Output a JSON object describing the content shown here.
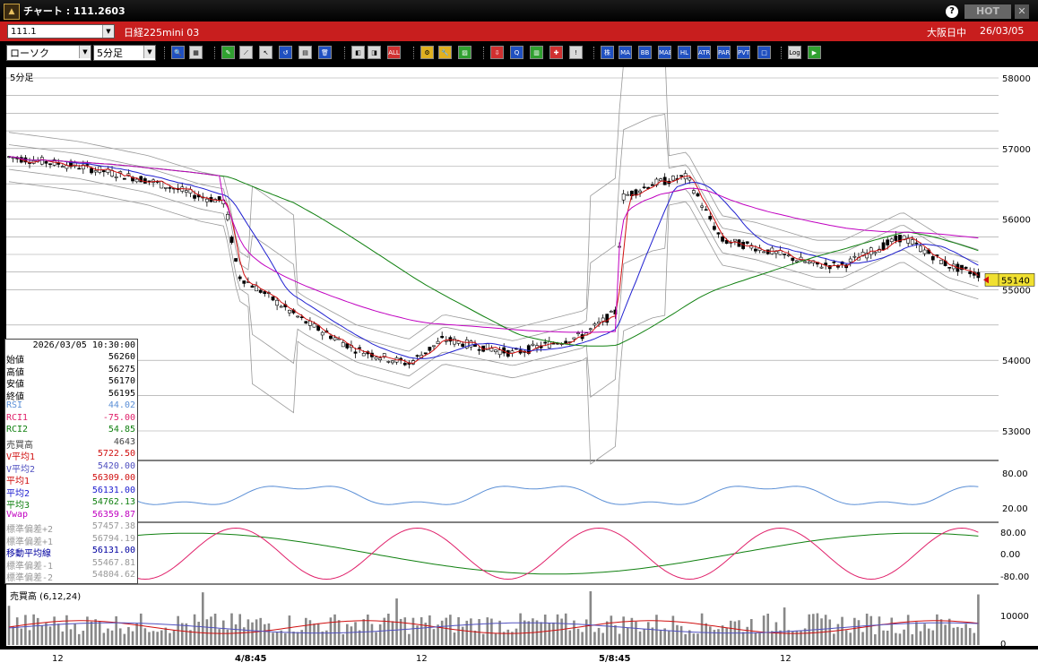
{
  "window": {
    "title": "チャート : 111.2603",
    "hot_label": "HOT",
    "help_label": "?",
    "close_label": "✕",
    "app_icon": "app-logo-icon"
  },
  "symbol_bar": {
    "code": "111.1",
    "name": "日経225mini 03",
    "market": "大阪日中",
    "date": "26/03/05"
  },
  "toolbar": {
    "chart_type": "ローソク",
    "period": "5分足",
    "buttons": [
      {
        "label": "🔍",
        "name": "zoom-icon"
      },
      {
        "label": "▦",
        "name": "grid-icon"
      },
      {
        "label": "✎",
        "name": "pen-icon"
      },
      {
        "label": "⟋",
        "name": "trendline-icon"
      },
      {
        "label": "↖",
        "name": "cursor-icon"
      },
      {
        "label": "↺",
        "name": "redo-icon"
      },
      {
        "label": "▤",
        "name": "memo-icon"
      },
      {
        "label": "🗑",
        "name": "trash-icon"
      },
      {
        "label": "◧",
        "name": "zoom-in-icon"
      },
      {
        "label": "◨",
        "name": "zoom-out-icon"
      },
      {
        "label": "ALL",
        "name": "all-icon"
      },
      {
        "label": "⚙",
        "name": "gear-icon"
      },
      {
        "label": "🔧",
        "name": "wrench-icon"
      },
      {
        "label": "▨",
        "name": "palette-icon"
      },
      {
        "label": "⇩",
        "name": "download-icon"
      },
      {
        "label": "Q",
        "name": "query-icon"
      },
      {
        "label": "▥",
        "name": "table-icon"
      },
      {
        "label": "✚",
        "name": "crosshair-icon"
      },
      {
        "label": "!",
        "name": "alert-icon"
      },
      {
        "label": "株",
        "name": "stock-icon"
      },
      {
        "label": "MA",
        "name": "ma-icon"
      },
      {
        "label": "BB",
        "name": "bb-icon"
      },
      {
        "label": "MAE",
        "name": "mae-icon"
      },
      {
        "label": "HL",
        "name": "hl-icon"
      },
      {
        "label": "ATR",
        "name": "atr-icon"
      },
      {
        "label": "PAR",
        "name": "par-icon"
      },
      {
        "label": "PVT",
        "name": "pvt-icon"
      },
      {
        "label": "□",
        "name": "box-icon"
      },
      {
        "label": "Log",
        "name": "log-icon"
      },
      {
        "label": "▶",
        "name": "play-icon"
      }
    ]
  },
  "main_chart": {
    "period_label": "5分足",
    "price_ticks": [
      "58000",
      "57000",
      "56000",
      "55000",
      "54000",
      "53000"
    ],
    "current_price": "55140"
  },
  "rsi_panel": {
    "ticks": [
      "80.00",
      "20.00"
    ]
  },
  "rci_panel": {
    "ticks": [
      "80.00",
      "0.00",
      "-80.00"
    ]
  },
  "volume_panel": {
    "label": "売買高 (6,12,24)",
    "ticks": [
      "10000",
      "0"
    ]
  },
  "x_axis": [
    "12",
    "4/8:45",
    "12",
    "5/8:45",
    "12"
  ],
  "info": {
    "datetime": "2026/03/05  10:30:00",
    "rows": [
      {
        "k": "始値",
        "v": "56260",
        "c": "#000"
      },
      {
        "k": "高値",
        "v": "56275",
        "c": "#000"
      },
      {
        "k": "安値",
        "v": "56170",
        "c": "#000"
      },
      {
        "k": "終値",
        "v": "56195",
        "c": "#000"
      },
      {
        "k": "RSI",
        "v": "44.02",
        "c": "#5b8fd6"
      },
      {
        "k": "RCI1",
        "v": "-75.00",
        "c": "#e0206a"
      },
      {
        "k": "RCI2",
        "v": "54.85",
        "c": "#108010"
      },
      {
        "k": "売買高",
        "v": "4643",
        "c": "#444"
      },
      {
        "k": "V平均1",
        "v": "5722.50",
        "c": "#d01010"
      },
      {
        "k": "V平均2",
        "v": "5420.00",
        "c": "#5050c0"
      },
      {
        "k": "平均1",
        "v": "56309.00",
        "c": "#d01010"
      },
      {
        "k": "平均2",
        "v": "56131.00",
        "c": "#2020d0"
      },
      {
        "k": "平均3",
        "v": "54762.13",
        "c": "#108010"
      },
      {
        "k": "Vwap",
        "v": "56359.87",
        "c": "#c000c0"
      },
      {
        "k": "標準偏差+2",
        "v": "57457.38",
        "c": "#999"
      },
      {
        "k": "標準偏差+1",
        "v": "56794.19",
        "c": "#999"
      },
      {
        "k": "移動平均線",
        "v": "56131.00",
        "c": "#0000a0"
      },
      {
        "k": "標準偏差-1",
        "v": "55467.81",
        "c": "#999"
      },
      {
        "k": "標準偏差-2",
        "v": "54804.62",
        "c": "#999"
      }
    ]
  },
  "colors": {
    "title_bg": "#000000",
    "symbol_bar_bg": "#c81e1e",
    "chart_bg": "#ffffff",
    "candle_up": "#ffffff",
    "candle_down": "#000000",
    "ma1": "#d01010",
    "ma2": "#2020d0",
    "ma3": "#108010",
    "vwap": "#c000c0",
    "rsi": "#5b8fd6",
    "rci1": "#e0206a",
    "rci2": "#108010",
    "bands": "#999999"
  }
}
